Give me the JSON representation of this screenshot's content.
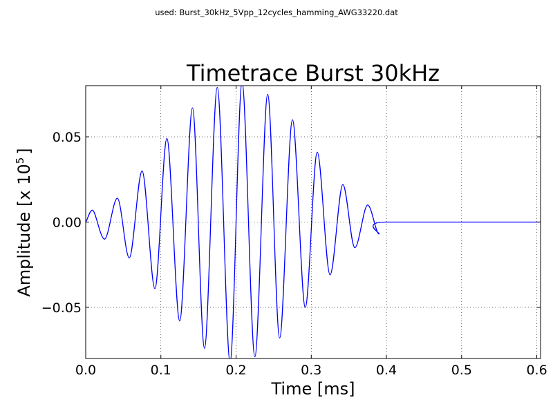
{
  "figure": {
    "suptitle": "used: Burst_30kHz_5Vpp_12cycles_hamming_AWG33220.dat"
  },
  "chart_data": {
    "type": "line",
    "title": "Timetrace Burst 30kHz",
    "xlabel": "Time [ms]",
    "ylabel_main": "Amplitude [x 10",
    "ylabel_exp": "5",
    "ylabel_close": "]",
    "xlim": [
      0.0,
      0.605
    ],
    "ylim": [
      -0.08,
      0.08
    ],
    "xticks": [
      {
        "value": 0.0,
        "label": "0.0"
      },
      {
        "value": 0.1,
        "label": "0.1"
      },
      {
        "value": 0.2,
        "label": "0.2"
      },
      {
        "value": 0.3,
        "label": "0.3"
      },
      {
        "value": 0.4,
        "label": "0.4"
      },
      {
        "value": 0.5,
        "label": "0.5"
      },
      {
        "value": 0.6,
        "label": "0.6"
      }
    ],
    "yticks": [
      {
        "value": 0.05,
        "label": "0.05"
      },
      {
        "value": 0.0,
        "label": "0.00"
      },
      {
        "value": -0.05,
        "label": "−0.05"
      }
    ],
    "grid": true,
    "series": [
      {
        "color": "#0000ff",
        "points": [
          [
            0.0,
            0.0
          ],
          [
            0.009,
            0.007
          ],
          [
            0.025,
            -0.01
          ],
          [
            0.042,
            0.014
          ],
          [
            0.058,
            -0.021
          ],
          [
            0.075,
            0.03
          ],
          [
            0.092,
            -0.039
          ],
          [
            0.108,
            0.049
          ],
          [
            0.125,
            -0.058
          ],
          [
            0.142,
            0.067
          ],
          [
            0.158,
            -0.074
          ],
          [
            0.175,
            0.079
          ],
          [
            0.192,
            -0.082
          ],
          [
            0.208,
            0.082
          ],
          [
            0.225,
            -0.079
          ],
          [
            0.242,
            0.075
          ],
          [
            0.258,
            -0.068
          ],
          [
            0.275,
            0.06
          ],
          [
            0.292,
            -0.05
          ],
          [
            0.308,
            0.041
          ],
          [
            0.325,
            -0.031
          ],
          [
            0.342,
            0.022
          ],
          [
            0.358,
            -0.015
          ],
          [
            0.375,
            0.01
          ],
          [
            0.39,
            -0.007
          ],
          [
            0.4,
            0.0
          ],
          [
            0.605,
            0.0
          ]
        ]
      }
    ]
  }
}
